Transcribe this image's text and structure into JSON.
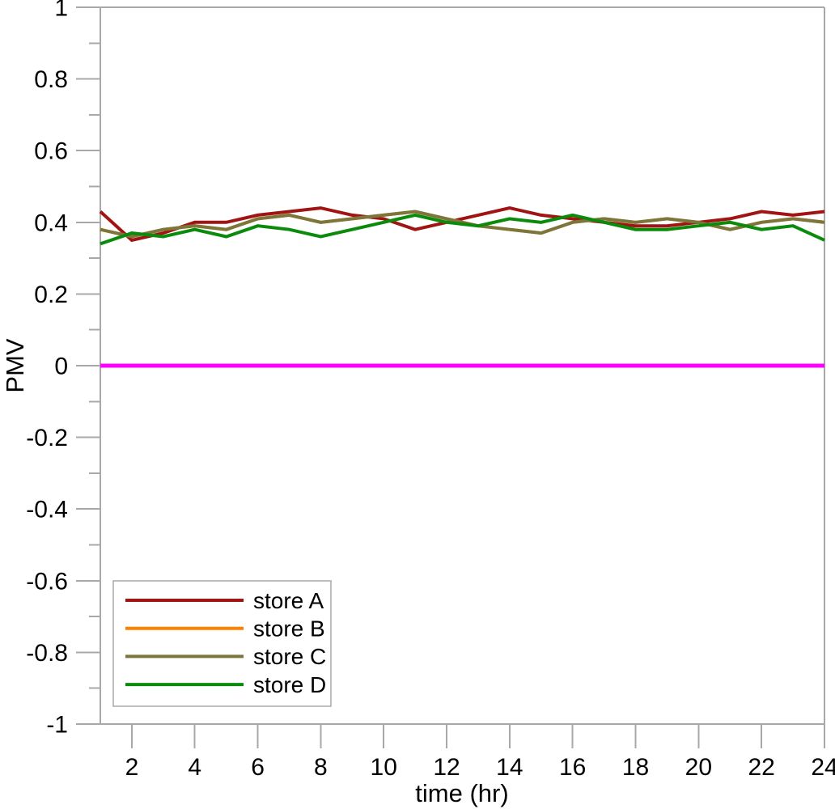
{
  "figure": {
    "background": "#FFFFFF",
    "axis_color": "#A8A8A8",
    "text_color": "#000000"
  },
  "chart_data": {
    "type": "line",
    "title": "",
    "xlabel": "time (hr)",
    "ylabel": "PMV",
    "xlim": [
      1,
      24
    ],
    "ylim": [
      -1,
      1
    ],
    "grid": false,
    "x_major_ticks": [
      2,
      4,
      6,
      8,
      10,
      12,
      14,
      16,
      18,
      20,
      22,
      24
    ],
    "y_major_ticks": [
      -1,
      -0.8,
      -0.6,
      -0.4,
      -0.2,
      0,
      0.2,
      0.4,
      0.6,
      0.8,
      1
    ],
    "y_minor_tick_step": 0.1,
    "legend_position": "lower-left",
    "x": [
      1,
      2,
      3,
      4,
      5,
      6,
      7,
      8,
      9,
      10,
      11,
      12,
      13,
      14,
      15,
      16,
      17,
      18,
      19,
      20,
      21,
      22,
      23,
      24
    ],
    "series": [
      {
        "name": "store A",
        "color": "#A11414",
        "hidden": false,
        "values": [
          0.43,
          0.35,
          0.37,
          0.4,
          0.4,
          0.42,
          0.43,
          0.44,
          0.42,
          0.41,
          0.38,
          0.4,
          0.42,
          0.44,
          0.42,
          0.41,
          0.4,
          0.39,
          0.39,
          0.4,
          0.41,
          0.43,
          0.42,
          0.43
        ]
      },
      {
        "name": "store B",
        "color": "#FF7F00",
        "hidden": true,
        "values": [
          0.38,
          0.36,
          0.38,
          0.39,
          0.38,
          0.41,
          0.42,
          0.4,
          0.41,
          0.42,
          0.43,
          0.41,
          0.39,
          0.38,
          0.37,
          0.4,
          0.41,
          0.4,
          0.41,
          0.4,
          0.38,
          0.4,
          0.41,
          0.4
        ]
      },
      {
        "name": "store C",
        "color": "#7B763B",
        "hidden": false,
        "values": [
          0.38,
          0.36,
          0.38,
          0.39,
          0.38,
          0.41,
          0.42,
          0.4,
          0.41,
          0.42,
          0.43,
          0.41,
          0.39,
          0.38,
          0.37,
          0.4,
          0.41,
          0.4,
          0.41,
          0.4,
          0.38,
          0.4,
          0.41,
          0.4
        ]
      },
      {
        "name": "store D",
        "color": "#0B8B0B",
        "hidden": false,
        "values": [
          0.34,
          0.37,
          0.36,
          0.38,
          0.36,
          0.39,
          0.38,
          0.36,
          0.38,
          0.4,
          0.42,
          0.4,
          0.39,
          0.41,
          0.4,
          0.42,
          0.4,
          0.38,
          0.38,
          0.39,
          0.4,
          0.38,
          0.39,
          0.35
        ]
      }
    ],
    "reference_line": {
      "y": 0,
      "color": "#FF00FF"
    },
    "legend_entries": [
      "store A",
      "store B",
      "store C",
      "store D"
    ]
  }
}
